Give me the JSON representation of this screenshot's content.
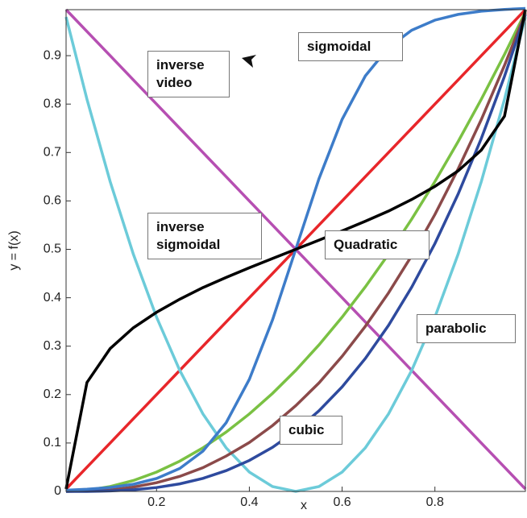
{
  "chart_data": {
    "type": "line",
    "x_label": "x",
    "y_label": "y = f(x)",
    "x": [
      0.005,
      0.05,
      0.1,
      0.15,
      0.2,
      0.25,
      0.3,
      0.35,
      0.4,
      0.45,
      0.5,
      0.55,
      0.6,
      0.65,
      0.7,
      0.75,
      0.8,
      0.85,
      0.9,
      0.95,
      0.995
    ],
    "series": [
      {
        "color": "#e8262a",
        "values": [
          0.005,
          0.05,
          0.1,
          0.15,
          0.2,
          0.25,
          0.3,
          0.35,
          0.4,
          0.45,
          0.5,
          0.55,
          0.6,
          0.65,
          0.7,
          0.75,
          0.8,
          0.85,
          0.9,
          0.95,
          0.995
        ]
      },
      {
        "color": "#b64fb2",
        "values": [
          0.995,
          0.95,
          0.9,
          0.85,
          0.8,
          0.75,
          0.7,
          0.65,
          0.6,
          0.55,
          0.5,
          0.45,
          0.4,
          0.35,
          0.3,
          0.25,
          0.2,
          0.15,
          0.1,
          0.05,
          0.005
        ]
      },
      {
        "color": "#6ccbd9",
        "values": [
          0.98,
          0.81,
          0.64,
          0.49,
          0.36,
          0.25,
          0.16,
          0.09,
          0.04,
          0.01,
          0,
          0.01,
          0.04,
          0.09,
          0.16,
          0.25,
          0.36,
          0.49,
          0.64,
          0.81,
          0.98
        ]
      },
      {
        "color": "#7ac143",
        "values": [
          0,
          0.0025,
          0.01,
          0.0225,
          0.04,
          0.0625,
          0.09,
          0.1225,
          0.16,
          0.2025,
          0.25,
          0.3025,
          0.36,
          0.4225,
          0.49,
          0.5625,
          0.64,
          0.7225,
          0.81,
          0.9025,
          0.99
        ]
      },
      {
        "color": "#8b4a4a",
        "values": [
          0,
          0.001,
          0.003,
          0.009,
          0.018,
          0.031,
          0.049,
          0.073,
          0.101,
          0.136,
          0.177,
          0.224,
          0.279,
          0.341,
          0.41,
          0.487,
          0.572,
          0.666,
          0.768,
          0.88,
          0.988
        ]
      },
      {
        "color": "#2e4a9e",
        "values": [
          0,
          0.0001,
          0.001,
          0.0034,
          0.008,
          0.0156,
          0.027,
          0.0429,
          0.064,
          0.0911,
          0.125,
          0.1664,
          0.216,
          0.2746,
          0.343,
          0.4219,
          0.512,
          0.6141,
          0.729,
          0.8574,
          0.985
        ]
      },
      {
        "color": "#3d7cc9",
        "values": [
          0.0026,
          0.0045,
          0.0082,
          0.0148,
          0.0266,
          0.0474,
          0.0832,
          0.1419,
          0.2315,
          0.3543,
          0.5,
          0.6457,
          0.7685,
          0.8581,
          0.9168,
          0.9526,
          0.9734,
          0.9852,
          0.9918,
          0.9955,
          0.9974
        ]
      },
      {
        "color": "#000000",
        "values": [
          0.005,
          0.225,
          0.295,
          0.338,
          0.37,
          0.397,
          0.421,
          0.442,
          0.462,
          0.481,
          0.5,
          0.519,
          0.538,
          0.558,
          0.579,
          0.603,
          0.63,
          0.662,
          0.705,
          0.775,
          0.995
        ]
      }
    ],
    "xlim": [
      0.005,
      0.995
    ],
    "ylim": [
      0,
      0.995
    ],
    "xticks": [
      0.2,
      0.4,
      0.6,
      0.8
    ],
    "yticks": [
      0,
      0.1,
      0.2,
      0.3,
      0.4,
      0.5,
      0.6,
      0.7,
      0.8,
      0.9
    ],
    "annotations": [
      "inverse video",
      "sigmoidal",
      "inverse sigmoidal",
      "Quadratic",
      "parabolic",
      "cubic"
    ]
  }
}
